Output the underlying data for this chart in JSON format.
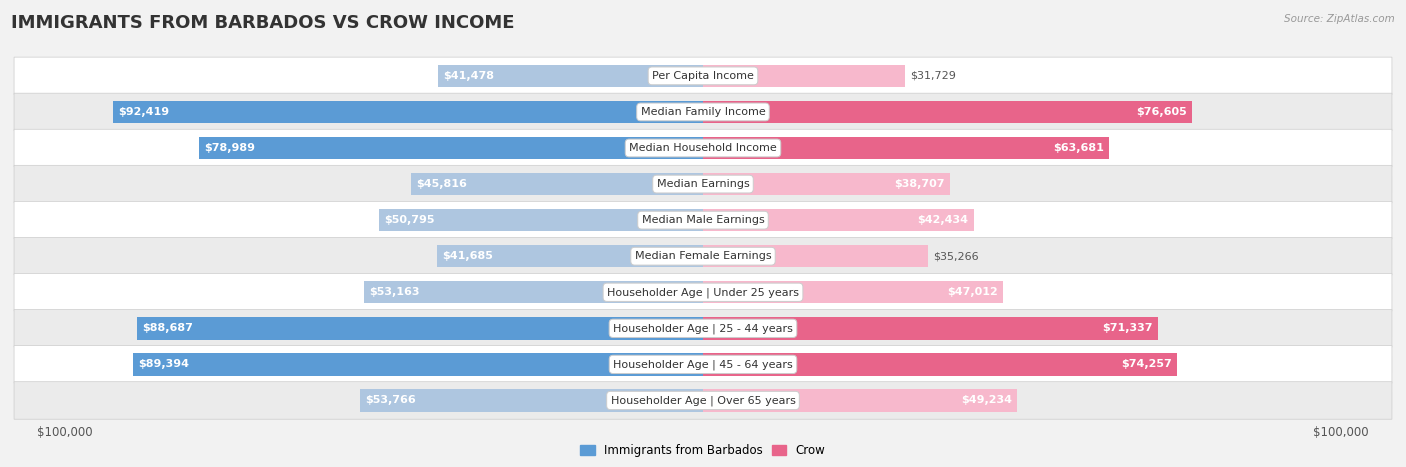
{
  "title": "IMMIGRANTS FROM BARBADOS VS CROW INCOME",
  "source": "Source: ZipAtlas.com",
  "categories": [
    "Per Capita Income",
    "Median Family Income",
    "Median Household Income",
    "Median Earnings",
    "Median Male Earnings",
    "Median Female Earnings",
    "Householder Age | Under 25 years",
    "Householder Age | 25 - 44 years",
    "Householder Age | 45 - 64 years",
    "Householder Age | Over 65 years"
  ],
  "barbados_values": [
    41478,
    92419,
    78989,
    45816,
    50795,
    41685,
    53163,
    88687,
    89394,
    53766
  ],
  "crow_values": [
    31729,
    76605,
    63681,
    38707,
    42434,
    35266,
    47012,
    71337,
    74257,
    49234
  ],
  "barbados_labels": [
    "$41,478",
    "$92,419",
    "$78,989",
    "$45,816",
    "$50,795",
    "$41,685",
    "$53,163",
    "$88,687",
    "$89,394",
    "$53,766"
  ],
  "crow_labels": [
    "$31,729",
    "$76,605",
    "$63,681",
    "$38,707",
    "$42,434",
    "$35,266",
    "$47,012",
    "$71,337",
    "$74,257",
    "$49,234"
  ],
  "max_value": 100000,
  "bar_color_barbados_light": "#aec6e0",
  "bar_color_barbados_dark": "#5b9bd5",
  "bar_color_crow_light": "#f7b8cc",
  "bar_color_crow_dark": "#e8648a",
  "label_color_dark": "#555555",
  "background_color": "#f2f2f2",
  "row_color_even": "#ffffff",
  "row_color_odd": "#ebebeb",
  "title_fontsize": 13,
  "label_fontsize": 8,
  "category_fontsize": 8,
  "axis_fontsize": 8.5,
  "legend_fontsize": 8.5,
  "barbados_dark_threshold": 0.6,
  "crow_dark_threshold": 0.6
}
